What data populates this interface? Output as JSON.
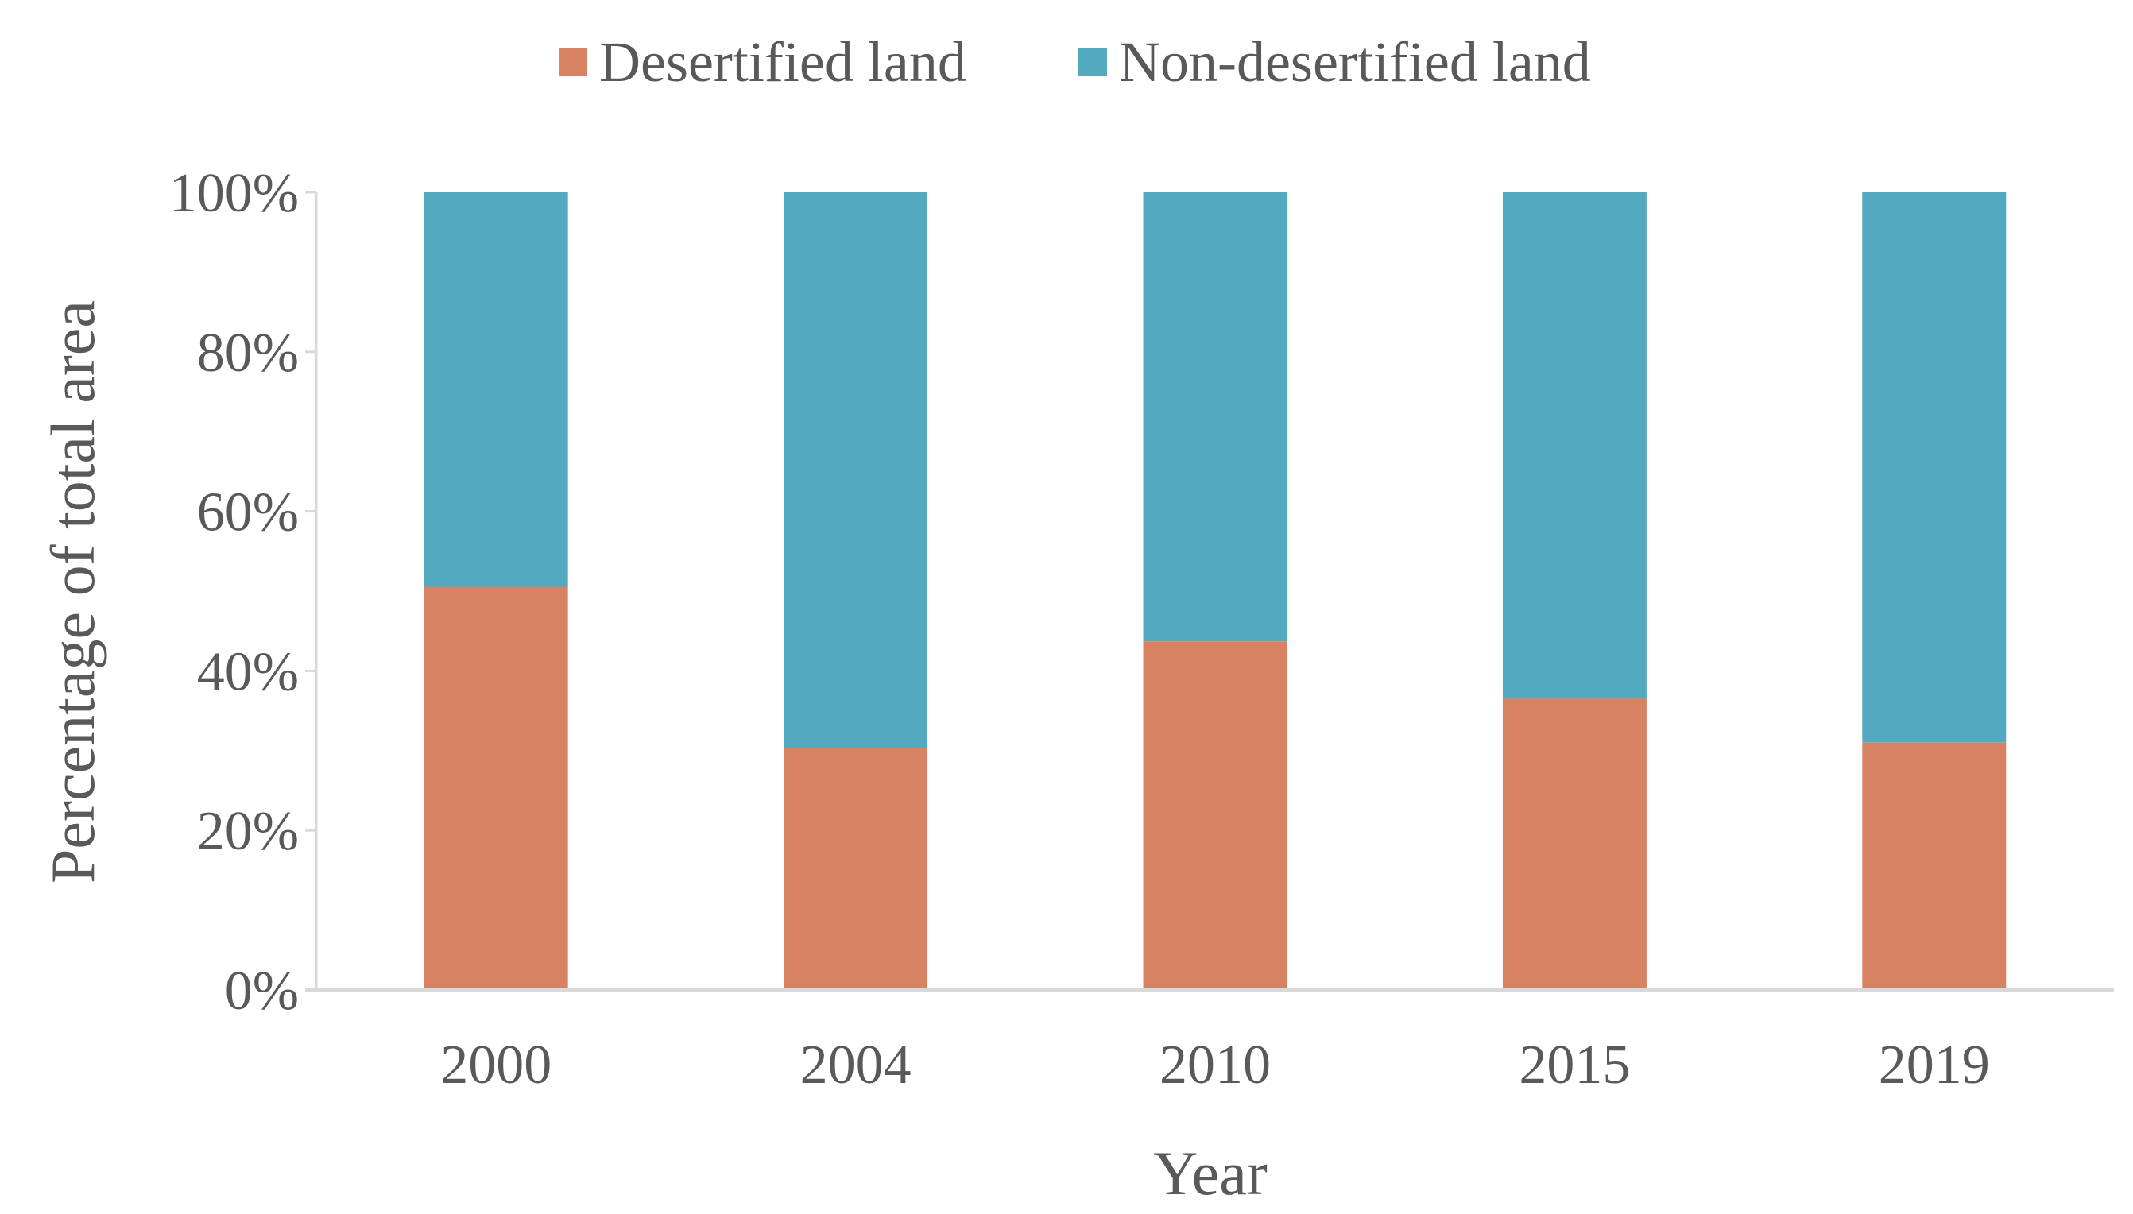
{
  "chart_data": {
    "type": "bar",
    "stacked": true,
    "title": "",
    "categories": [
      "2000",
      "2004",
      "2010",
      "2015",
      "2019"
    ],
    "series": [
      {
        "name": "Desertified land",
        "color": "#D88264",
        "values": [
          50.5,
          30.3,
          43.7,
          36.5,
          31.0
        ]
      },
      {
        "name": "Non-desertified land",
        "color": "#52A9C0",
        "values": [
          49.5,
          69.7,
          56.3,
          63.5,
          69.0
        ]
      }
    ],
    "xlabel": "Year",
    "ylabel": "Percentage of total area",
    "ylim": [
      0,
      100
    ],
    "yticks": [
      "0%",
      "20%",
      "40%",
      "60%",
      "80%",
      "100%"
    ],
    "legend_position": "top-center",
    "grid": false,
    "axis_color": "#D9D9D9"
  }
}
